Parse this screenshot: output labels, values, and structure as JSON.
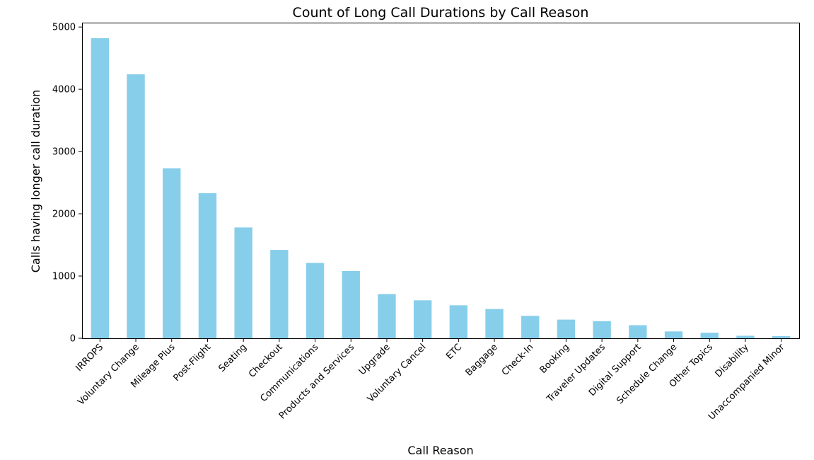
{
  "chart_data": {
    "type": "bar",
    "title": "Count of Long Call Durations by Call Reason",
    "xlabel": "Call Reason",
    "ylabel": "Calls having longer call duration",
    "categories": [
      "IRROPS",
      "Voluntary Change",
      "Mileage Plus",
      "Post-Flight",
      "Seating",
      "Checkout",
      "Communications",
      "Products and Services",
      "Upgrade",
      "Voluntary Cancel",
      "ETC",
      "Baggage",
      "Check-In",
      "Booking",
      "Traveler Updates",
      "Digital Support",
      "Schedule Change",
      "Other Topics",
      "Disability",
      "Unaccompanied Minor"
    ],
    "values": [
      4820,
      4240,
      2730,
      2330,
      1780,
      1420,
      1210,
      1080,
      710,
      610,
      530,
      470,
      360,
      300,
      275,
      210,
      110,
      90,
      40,
      35
    ],
    "ylim": [
      0,
      5070
    ],
    "yticks": [
      0,
      1000,
      2000,
      3000,
      4000,
      5000
    ],
    "bar_color": "#87ceeb",
    "grid": false,
    "legend": "none"
  }
}
